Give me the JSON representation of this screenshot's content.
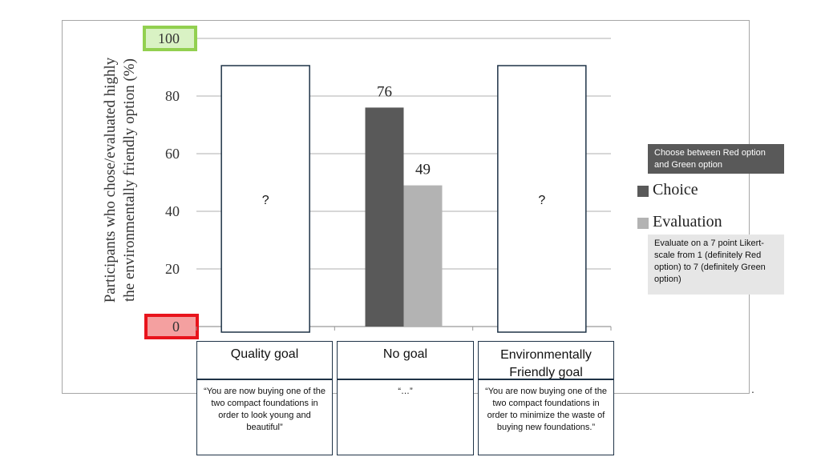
{
  "chart_data": {
    "type": "bar",
    "ylabel": "Participants who chose/evaluated highly the environmentally friendly option (%)",
    "ylim": [
      0,
      100
    ],
    "yticks": [
      "0",
      "20",
      "40",
      "60",
      "80",
      "100"
    ],
    "grid": true,
    "categories": [
      "Quality goal",
      "No goal",
      "Environmentally Friendly goal"
    ],
    "series": [
      {
        "name": "Choice",
        "color": "#595959",
        "values": [
          null,
          76,
          null
        ]
      },
      {
        "name": "Evaluation",
        "color": "#b3b3b3",
        "values": [
          null,
          49,
          null
        ]
      }
    ],
    "unknown_marker": "?",
    "legend_position": "right",
    "category_descriptions": [
      "“You are now buying one of the two compact foundations in order to look young and beautiful”",
      "“…”",
      "“You are now buying one of the two compact foundations in order to minimize the waste of buying new foundations.”"
    ],
    "highlight_colors": {
      "max_tick": "#92d050",
      "min_tick": "#e8141c"
    }
  },
  "notes": {
    "choice": "Choose between Red option and Green option",
    "evaluation": "Evaluate on a 7 point Likert-scale from 1 (definitely Red option) to 7 (definitely Green option)"
  },
  "trailing_mark": "."
}
